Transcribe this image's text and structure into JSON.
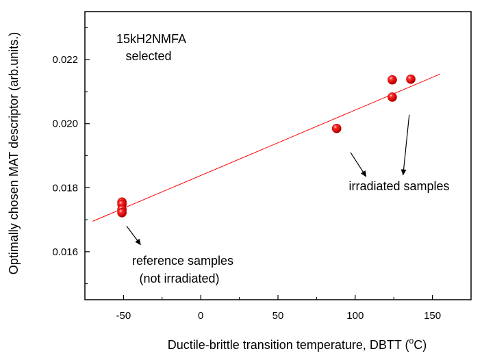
{
  "chart_data": {
    "type": "scatter",
    "xlabel": "Ductile-brittle transition temperature, DBTT (",
    "xlabel_super": "o",
    "xlabel_unit": "C)",
    "ylabel": "Optimally chosen  MAT descriptor (arb.units.)",
    "xlim": [
      -75,
      175
    ],
    "ylim": [
      0.0145,
      0.0235
    ],
    "xticks": [
      -50,
      0,
      50,
      100,
      150
    ],
    "xtick_labels": [
      "-50",
      "0",
      "50",
      "100",
      "150"
    ],
    "yticks": [
      0.016,
      0.018,
      0.02,
      0.022
    ],
    "ytick_labels": [
      "0.016",
      "0.018",
      "0.020",
      "0.022"
    ],
    "grid": false,
    "series": [
      {
        "name": "samples",
        "marker": "sphere",
        "color": "#e00000",
        "points": [
          {
            "x": -51,
            "y": 0.01755
          },
          {
            "x": -51,
            "y": 0.01748
          },
          {
            "x": -51,
            "y": 0.01732
          },
          {
            "x": -51,
            "y": 0.01722
          },
          {
            "x": 88,
            "y": 0.01985
          },
          {
            "x": 124,
            "y": 0.02083
          },
          {
            "x": 124,
            "y": 0.02137
          },
          {
            "x": 136,
            "y": 0.02139
          }
        ]
      },
      {
        "name": "linear fit",
        "type": "line",
        "color": "#ff0000",
        "x": [
          -70,
          155
        ],
        "y": [
          0.01695,
          0.02155
        ]
      }
    ],
    "annotations": {
      "title_line1": "15kH2NMFA",
      "title_line2": "selected",
      "irradiated": "irradiated samples",
      "reference_line1": "reference samples",
      "reference_line2": "(not irradiated)"
    },
    "arrows": [
      {
        "name": "reference-arrow",
        "from": [
          -48,
          0.0168
        ],
        "to": [
          -39,
          0.01622
        ]
      },
      {
        "name": "irradiated-arrow-left",
        "from": [
          97,
          0.0191
        ],
        "to": [
          107,
          0.01835
        ]
      },
      {
        "name": "irradiated-arrow-right",
        "from": [
          135,
          0.02028
        ],
        "to": [
          131,
          0.0184
        ]
      }
    ]
  }
}
